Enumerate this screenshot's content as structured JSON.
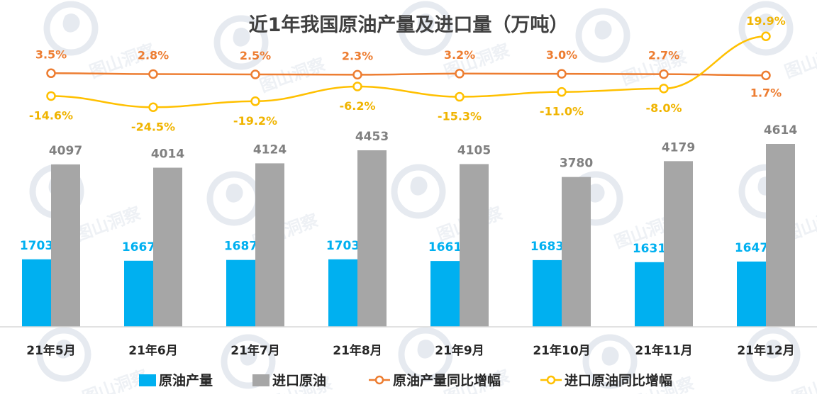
{
  "chart_data": {
    "type": "bar",
    "title": "近1年我国原油产量及进口量（万吨）",
    "categories": [
      "21年5月",
      "21年6月",
      "21年7月",
      "21年8月",
      "21年9月",
      "21年10月",
      "21年11月",
      "21年12月"
    ],
    "series": [
      {
        "name": "原油产量",
        "kind": "bar",
        "color": "#00b0f0",
        "values": [
          1703,
          1667,
          1687,
          1703,
          1661,
          1683,
          1631,
          1647
        ]
      },
      {
        "name": "进口原油",
        "kind": "bar",
        "color": "#a6a6a6",
        "values": [
          4097,
          4014,
          4124,
          4453,
          4105,
          3780,
          4179,
          4614
        ]
      },
      {
        "name": "原油产量同比增幅",
        "kind": "line",
        "color": "#ed7d31",
        "values": [
          3.5,
          2.8,
          2.5,
          2.3,
          3.2,
          3.0,
          2.7,
          1.7
        ],
        "labels": [
          "3.5%",
          "2.8%",
          "2.5%",
          "2.3%",
          "3.2%",
          "3.0%",
          "2.7%",
          "1.7%"
        ]
      },
      {
        "name": "进口原油同比增幅",
        "kind": "line",
        "color": "#ffc000",
        "values": [
          -14.6,
          -24.5,
          -19.2,
          -6.2,
          -15.3,
          -11.0,
          -8.0,
          19.9
        ],
        "labels": [
          "-14.6%",
          "-24.5%",
          "-19.2%",
          "-6.2%",
          "-15.3%",
          "-11.0%",
          "-8.0%",
          "19.9%"
        ]
      }
    ],
    "legend_position": "bottom",
    "legend": [
      "原油产量",
      "进口原油",
      "原油产量同比增幅",
      "进口原油同比增幅"
    ],
    "ylim": [
      0,
      4700
    ],
    "grid": false,
    "watermark": "图山洞察"
  }
}
